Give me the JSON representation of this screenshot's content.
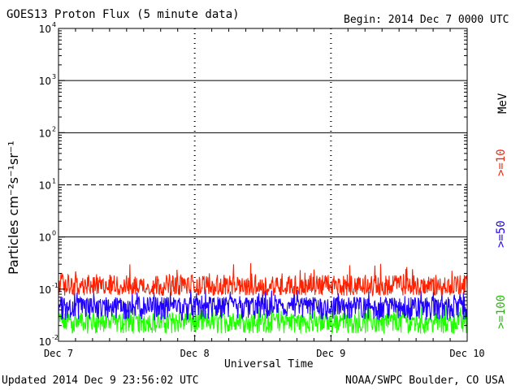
{
  "header": {
    "title": "GOES13 Proton Flux (5 minute data)",
    "begin": "Begin: 2014 Dec 7 0000 UTC"
  },
  "footer": {
    "updated": "Updated 2014 Dec  9 23:56:02 UTC",
    "credit": "NOAA/SWPC Boulder, CO USA"
  },
  "right_labels": {
    "unit": "MeV",
    "ge10": ">=10",
    "ge50": ">=50",
    "ge100": ">=100"
  },
  "colors": {
    "ge10": "#ff2000",
    "ge50": "#2000ff",
    "ge100": "#20ff00",
    "grid": "#000000"
  },
  "chart_data": {
    "type": "line",
    "title": "GOES13 Proton Flux (5 minute data)",
    "xlabel": "Universal Time",
    "ylabel": "Particles cm⁻²s⁻¹sr⁻¹",
    "yscale": "log",
    "ylim": [
      0.01,
      10000
    ],
    "xlim": [
      "2014-12-07 00:00",
      "2014-12-10 00:00"
    ],
    "x_ticks": [
      "Dec 7",
      "Dec 8",
      "Dec 9",
      "Dec 10"
    ],
    "y_ticks": [
      {
        "base": "10",
        "exp": "-2"
      },
      {
        "base": "10",
        "exp": "-1"
      },
      {
        "base": "10",
        "exp": "0"
      },
      {
        "base": "10",
        "exp": "1"
      },
      {
        "base": "10",
        "exp": "2"
      },
      {
        "base": "10",
        "exp": "3"
      },
      {
        "base": "10",
        "exp": "4"
      }
    ],
    "reference_lines": [
      {
        "value": 10,
        "style": "dashed"
      },
      {
        "value": 1,
        "style": "solid"
      },
      {
        "value": 100,
        "style": "solid"
      },
      {
        "value": 1000,
        "style": "solid"
      }
    ],
    "series": [
      {
        "name": ">=10 MeV",
        "color": "#ff2000",
        "typical": 0.11,
        "min": 0.075,
        "max": 0.32
      },
      {
        "name": ">=50 MeV",
        "color": "#2000ff",
        "typical": 0.05,
        "min": 0.025,
        "max": 0.1
      },
      {
        "name": ">=100 MeV",
        "color": "#20ff00",
        "typical": 0.025,
        "min": 0.014,
        "max": 0.05
      }
    ],
    "grid": true
  }
}
